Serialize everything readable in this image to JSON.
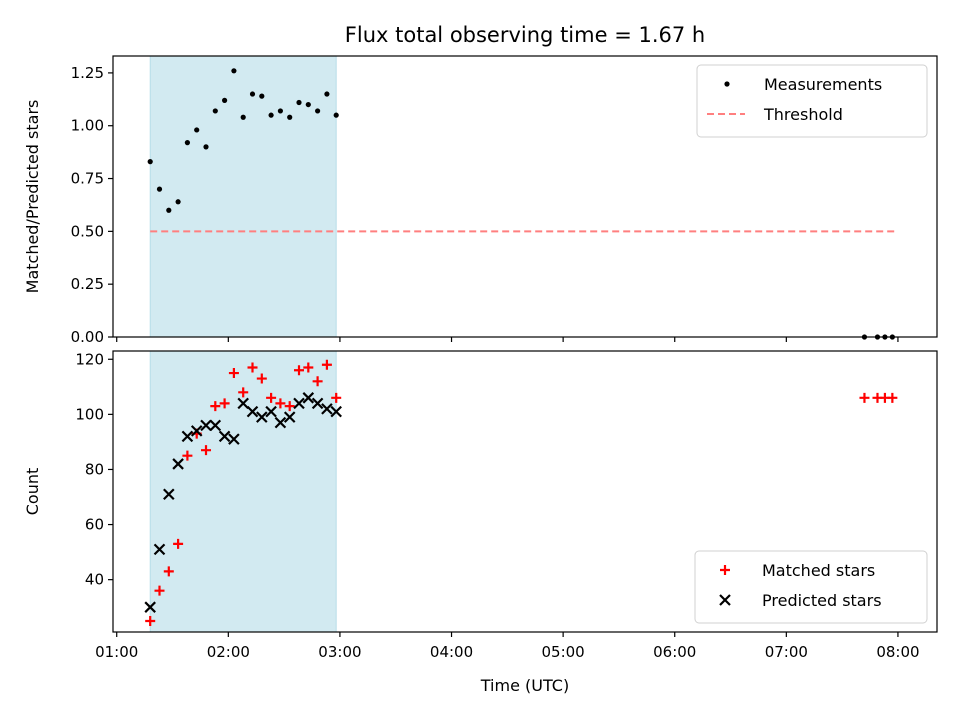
{
  "chart_data": [
    {
      "type": "scatter",
      "title": "Flux total observing time = 1.67 h",
      "xlabel": "",
      "ylabel": "Matched/Predicted stars",
      "ylim": [
        0,
        1.33
      ],
      "yticks": [
        0.0,
        0.25,
        0.5,
        0.75,
        1.0,
        1.25
      ],
      "ytick_labels": [
        "0.00",
        "0.25",
        "0.50",
        "0.75",
        "1.00",
        "1.25"
      ],
      "xlim": [
        "00:58",
        "08:21"
      ],
      "xticks": [
        "01:00",
        "02:00",
        "03:00",
        "04:00",
        "05:00",
        "06:00",
        "07:00",
        "08:00"
      ],
      "xtick_labels_visible": false,
      "legend_position": "top-right",
      "shaded_span": {
        "x": [
          "01:18",
          "02:58"
        ],
        "color": "#add8e6"
      },
      "series": [
        {
          "name": "Measurements",
          "marker": "dot",
          "color": "#000000",
          "points": [
            [
              "01:18",
              0.83
            ],
            [
              "01:23",
              0.7
            ],
            [
              "01:28",
              0.6
            ],
            [
              "01:33",
              0.64
            ],
            [
              "01:38",
              0.92
            ],
            [
              "01:43",
              0.98
            ],
            [
              "01:48",
              0.9
            ],
            [
              "01:53",
              1.07
            ],
            [
              "01:58",
              1.12
            ],
            [
              "02:03",
              1.26
            ],
            [
              "02:08",
              1.04
            ],
            [
              "02:13",
              1.15
            ],
            [
              "02:18",
              1.14
            ],
            [
              "02:23",
              1.05
            ],
            [
              "02:28",
              1.07
            ],
            [
              "02:33",
              1.04
            ],
            [
              "02:38",
              1.11
            ],
            [
              "02:43",
              1.1
            ],
            [
              "02:48",
              1.07
            ],
            [
              "02:53",
              1.15
            ],
            [
              "02:58",
              1.05
            ],
            [
              "07:42",
              0.0
            ],
            [
              "07:49",
              0.0
            ],
            [
              "07:53",
              0.0
            ],
            [
              "07:57",
              0.0
            ]
          ]
        },
        {
          "name": "Threshold",
          "line_style": "dashed",
          "color": "#ff7f7f",
          "points": [
            [
              "01:18",
              0.5
            ],
            [
              "07:59",
              0.5
            ]
          ]
        }
      ]
    },
    {
      "type": "scatter",
      "title": "",
      "xlabel": "Time (UTC)",
      "ylabel": "Count",
      "ylim": [
        21,
        123
      ],
      "yticks": [
        40,
        60,
        80,
        100,
        120
      ],
      "ytick_labels": [
        "40",
        "60",
        "80",
        "100",
        "120"
      ],
      "xlim": [
        "00:58",
        "08:21"
      ],
      "xticks": [
        "01:00",
        "02:00",
        "03:00",
        "04:00",
        "05:00",
        "06:00",
        "07:00",
        "08:00"
      ],
      "xtick_labels": [
        "01:00",
        "02:00",
        "03:00",
        "04:00",
        "05:00",
        "06:00",
        "07:00",
        "08:00"
      ],
      "legend_position": "bottom-right",
      "shaded_span": {
        "x": [
          "01:18",
          "02:58"
        ],
        "color": "#add8e6"
      },
      "series": [
        {
          "name": "Matched stars",
          "marker": "plus",
          "color": "#ff0000",
          "points": [
            [
              "01:18",
              25
            ],
            [
              "01:23",
              36
            ],
            [
              "01:28",
              43
            ],
            [
              "01:33",
              53
            ],
            [
              "01:38",
              85
            ],
            [
              "01:43",
              93
            ],
            [
              "01:48",
              87
            ],
            [
              "01:53",
              103
            ],
            [
              "01:58",
              104
            ],
            [
              "02:03",
              115
            ],
            [
              "02:08",
              108
            ],
            [
              "02:13",
              117
            ],
            [
              "02:18",
              113
            ],
            [
              "02:23",
              106
            ],
            [
              "02:28",
              104
            ],
            [
              "02:33",
              103
            ],
            [
              "02:38",
              116
            ],
            [
              "02:43",
              117
            ],
            [
              "02:48",
              112
            ],
            [
              "02:53",
              118
            ],
            [
              "02:58",
              106
            ],
            [
              "07:42",
              106
            ],
            [
              "07:49",
              106
            ],
            [
              "07:53",
              106
            ],
            [
              "07:57",
              106
            ]
          ]
        },
        {
          "name": "Predicted stars",
          "marker": "x",
          "color": "#000000",
          "points": [
            [
              "01:18",
              30
            ],
            [
              "01:23",
              51
            ],
            [
              "01:28",
              71
            ],
            [
              "01:33",
              82
            ],
            [
              "01:38",
              92
            ],
            [
              "01:43",
              94
            ],
            [
              "01:48",
              96
            ],
            [
              "01:53",
              96
            ],
            [
              "01:58",
              92
            ],
            [
              "02:03",
              91
            ],
            [
              "02:08",
              104
            ],
            [
              "02:13",
              101
            ],
            [
              "02:18",
              99
            ],
            [
              "02:23",
              101
            ],
            [
              "02:28",
              97
            ],
            [
              "02:33",
              99
            ],
            [
              "02:38",
              104
            ],
            [
              "02:43",
              106
            ],
            [
              "02:48",
              104
            ],
            [
              "02:53",
              102
            ],
            [
              "02:58",
              101
            ]
          ]
        }
      ]
    }
  ]
}
